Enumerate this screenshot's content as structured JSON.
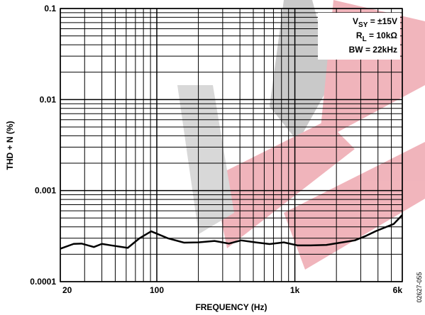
{
  "chart_data": {
    "type": "line",
    "xlabel": "FREQUENCY (Hz)",
    "ylabel": "THD + N (%)",
    "xscale": "log",
    "yscale": "log",
    "grid": true,
    "color": "#000000",
    "xlim": [
      20,
      6000
    ],
    "ylim": [
      0.0001,
      0.1
    ],
    "xticks": [
      20,
      100,
      {
        "value": 1000,
        "label": "1k"
      },
      {
        "value": 6000,
        "label": "6k"
      }
    ],
    "yticks": [
      0.0001,
      0.001,
      0.01,
      0.1
    ],
    "x_minor_grid": [
      30,
      40,
      50,
      60,
      70,
      80,
      90,
      200,
      300,
      400,
      500,
      600,
      700,
      800,
      900,
      2000,
      3000,
      4000,
      5000
    ],
    "y_minor_grid": [
      0.0002,
      0.0003,
      0.0004,
      0.0005,
      0.0006,
      0.0007,
      0.0008,
      0.0009,
      0.002,
      0.003,
      0.004,
      0.005,
      0.006,
      0.007,
      0.008,
      0.009,
      0.02,
      0.03,
      0.04,
      0.05,
      0.06,
      0.07,
      0.08,
      0.09
    ],
    "x": [
      20,
      25,
      28.5,
      35,
      40,
      47,
      61.6,
      75,
      91,
      120,
      158,
      200,
      262,
      333,
      408,
      520,
      656,
      832,
      1050,
      1300,
      1690,
      2200,
      2717,
      3300,
      3875,
      5200,
      6000
    ],
    "values": [
      0.00023,
      0.00026,
      0.000262,
      0.00024,
      0.00026,
      0.00025,
      0.000235,
      0.0003,
      0.000357,
      0.0003,
      0.000268,
      0.00027,
      0.00028,
      0.000262,
      0.000284,
      0.00027,
      0.000259,
      0.00027,
      0.00025,
      0.00025,
      0.000253,
      0.00027,
      0.000284,
      0.00032,
      0.00036,
      0.00043,
      0.00054
    ],
    "annotations": [
      {
        "main": "V",
        "sub": "SY",
        "rest": " = ±15V"
      },
      {
        "main": "R",
        "sub": "L",
        "rest": " = 10kΩ"
      },
      {
        "main": "BW = 22kHz"
      }
    ],
    "figure_id": "02627-055"
  }
}
